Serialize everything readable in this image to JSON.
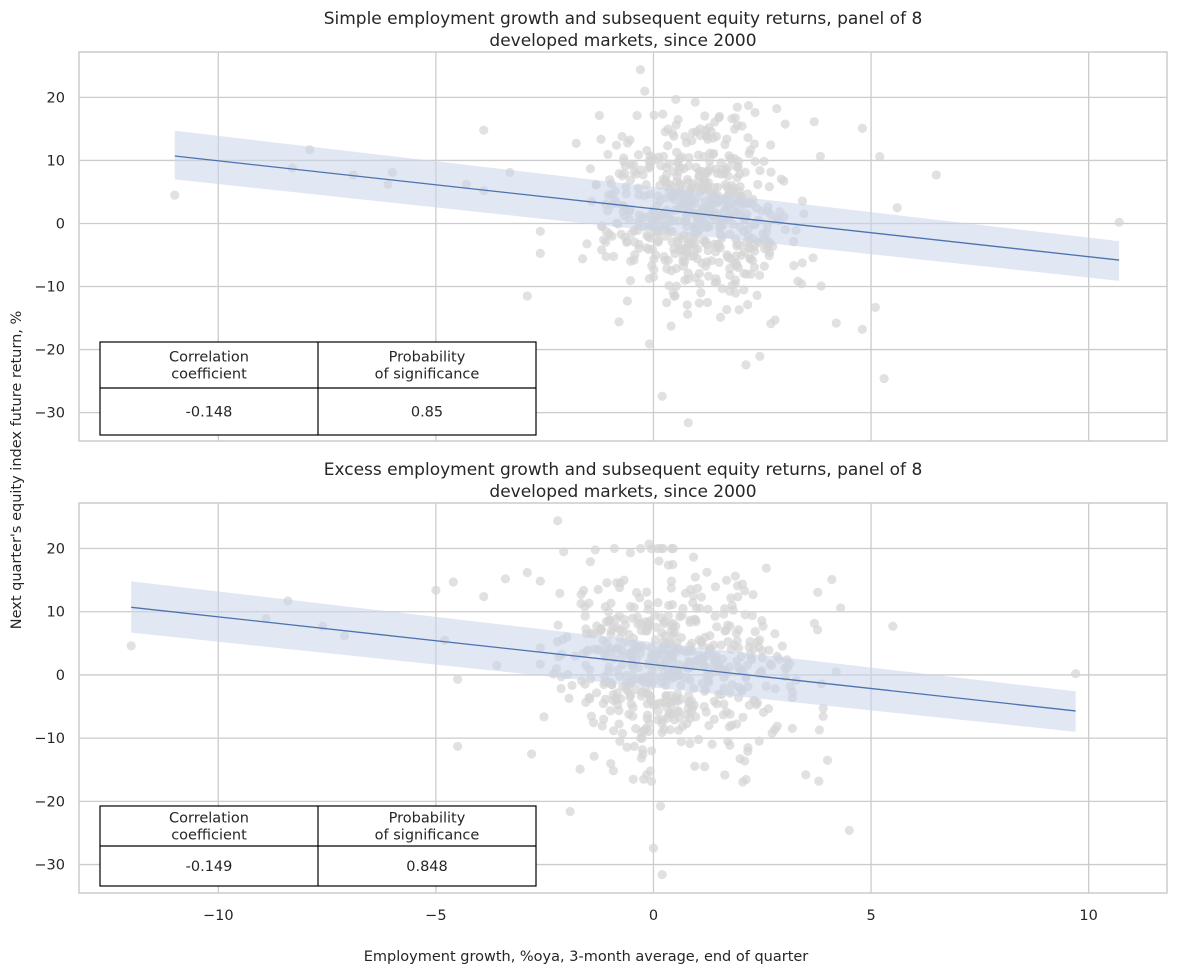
{
  "figure": {
    "ylabel": "Next quarter's equity index future return, %",
    "xlabel": "Employment growth, %oya, 3-month average, end of quarter"
  },
  "colors": {
    "points": "#d4d4d4",
    "line": "#4c72b0",
    "band": "#c8d4ea",
    "grid": "#cccccc",
    "frame": "#cccccc"
  },
  "chart_data": [
    {
      "type": "scatter",
      "title_lines": [
        "Simple employment growth and subsequent equity returns, panel of 8",
        "developed markets, since 2000"
      ],
      "xlim": [
        -13.2,
        11.8
      ],
      "ylim": [
        -34.5,
        27.2
      ],
      "xticks": [
        -10,
        -5,
        0,
        5,
        10
      ],
      "xtick_labels": [],
      "yticks": [
        -30,
        -20,
        -10,
        0,
        10,
        20
      ],
      "ytick_labels": [
        "−30",
        "−20",
        "−10",
        "0",
        "10",
        "20"
      ],
      "grid": true,
      "regression": {
        "x": [
          -11.0,
          10.7
        ],
        "y": [
          10.7,
          -5.8
        ],
        "ci_low": [
          7.0,
          -9.1
        ],
        "ci_high": [
          14.7,
          -2.8
        ]
      },
      "outliers": [
        [
          -11.0,
          4.5
        ],
        [
          -7.9,
          11.7
        ],
        [
          -8.3,
          8.8
        ],
        [
          -6.9,
          7.7
        ],
        [
          -6.1,
          6.2
        ],
        [
          -6.0,
          8.1
        ],
        [
          -4.3,
          6.2
        ],
        [
          -3.9,
          5.2
        ],
        [
          -3.9,
          14.8
        ],
        [
          -3.3,
          8.1
        ],
        [
          -2.9,
          -11.5
        ],
        [
          -0.3,
          24.4
        ],
        [
          -0.2,
          21.0
        ],
        [
          0.2,
          -27.4
        ],
        [
          0.8,
          -31.6
        ],
        [
          5.3,
          -24.6
        ],
        [
          10.7,
          0.2
        ],
        [
          6.5,
          7.7
        ],
        [
          5.6,
          2.5
        ],
        [
          4.8,
          15.1
        ],
        [
          5.2,
          10.6
        ],
        [
          4.2,
          -15.8
        ],
        [
          4.8,
          -16.8
        ],
        [
          5.1,
          -13.3
        ]
      ],
      "cloud": {
        "count": 580,
        "x_mean": 0.9,
        "x_sd": 1.1,
        "y_mean": 2.0,
        "y_sd": 7.5,
        "seed": 17
      },
      "table": {
        "headers": [
          "Correlation\ncoefficient",
          "Probability\nof significance"
        ],
        "values": [
          "-0.148",
          "0.85"
        ]
      }
    },
    {
      "type": "scatter",
      "title_lines": [
        "Excess employment growth and subsequent equity returns, panel of 8",
        "developed markets, since 2000"
      ],
      "xlim": [
        -13.2,
        11.8
      ],
      "ylim": [
        -34.5,
        27.2
      ],
      "xticks": [
        -10,
        -5,
        0,
        5,
        10
      ],
      "xtick_labels": [
        "−10",
        "−5",
        "0",
        "5",
        "10"
      ],
      "yticks": [
        -30,
        -20,
        -10,
        0,
        10,
        20
      ],
      "ytick_labels": [
        "−30",
        "−20",
        "−10",
        "0",
        "10",
        "20"
      ],
      "grid": true,
      "regression": {
        "x": [
          -12.0,
          9.7
        ],
        "y": [
          10.7,
          -5.7
        ],
        "ci_low": [
          6.7,
          -9.0
        ],
        "ci_high": [
          14.8,
          -2.6
        ]
      },
      "outliers": [
        [
          -12.0,
          4.6
        ],
        [
          -8.9,
          8.9
        ],
        [
          -8.4,
          11.7
        ],
        [
          -7.6,
          7.7
        ],
        [
          -7.1,
          6.2
        ],
        [
          -5.0,
          13.4
        ],
        [
          -4.8,
          5.5
        ],
        [
          -4.6,
          14.7
        ],
        [
          -4.5,
          -0.7
        ],
        [
          -3.9,
          12.4
        ],
        [
          -3.6,
          1.5
        ],
        [
          -3.4,
          15.2
        ],
        [
          -2.9,
          16.2
        ],
        [
          -2.8,
          -12.5
        ],
        [
          -4.5,
          -11.3
        ],
        [
          -2.2,
          24.4
        ],
        [
          -0.1,
          20.7
        ],
        [
          0.0,
          -27.4
        ],
        [
          0.2,
          -31.6
        ],
        [
          4.5,
          -24.6
        ],
        [
          9.7,
          0.2
        ],
        [
          5.5,
          7.7
        ],
        [
          4.3,
          10.6
        ],
        [
          4.1,
          15.1
        ],
        [
          3.5,
          -15.8
        ],
        [
          4.0,
          -13.5
        ],
        [
          3.8,
          -16.8
        ],
        [
          4.2,
          0.5
        ]
      ],
      "cloud": {
        "count": 560,
        "x_mean": 0.4,
        "x_sd": 1.3,
        "y_mean": 2.0,
        "y_sd": 7.5,
        "seed": 29
      },
      "table": {
        "headers": [
          "Correlation\ncoefficient",
          "Probability\nof significance"
        ],
        "values": [
          "-0.149",
          "0.848"
        ]
      }
    }
  ]
}
